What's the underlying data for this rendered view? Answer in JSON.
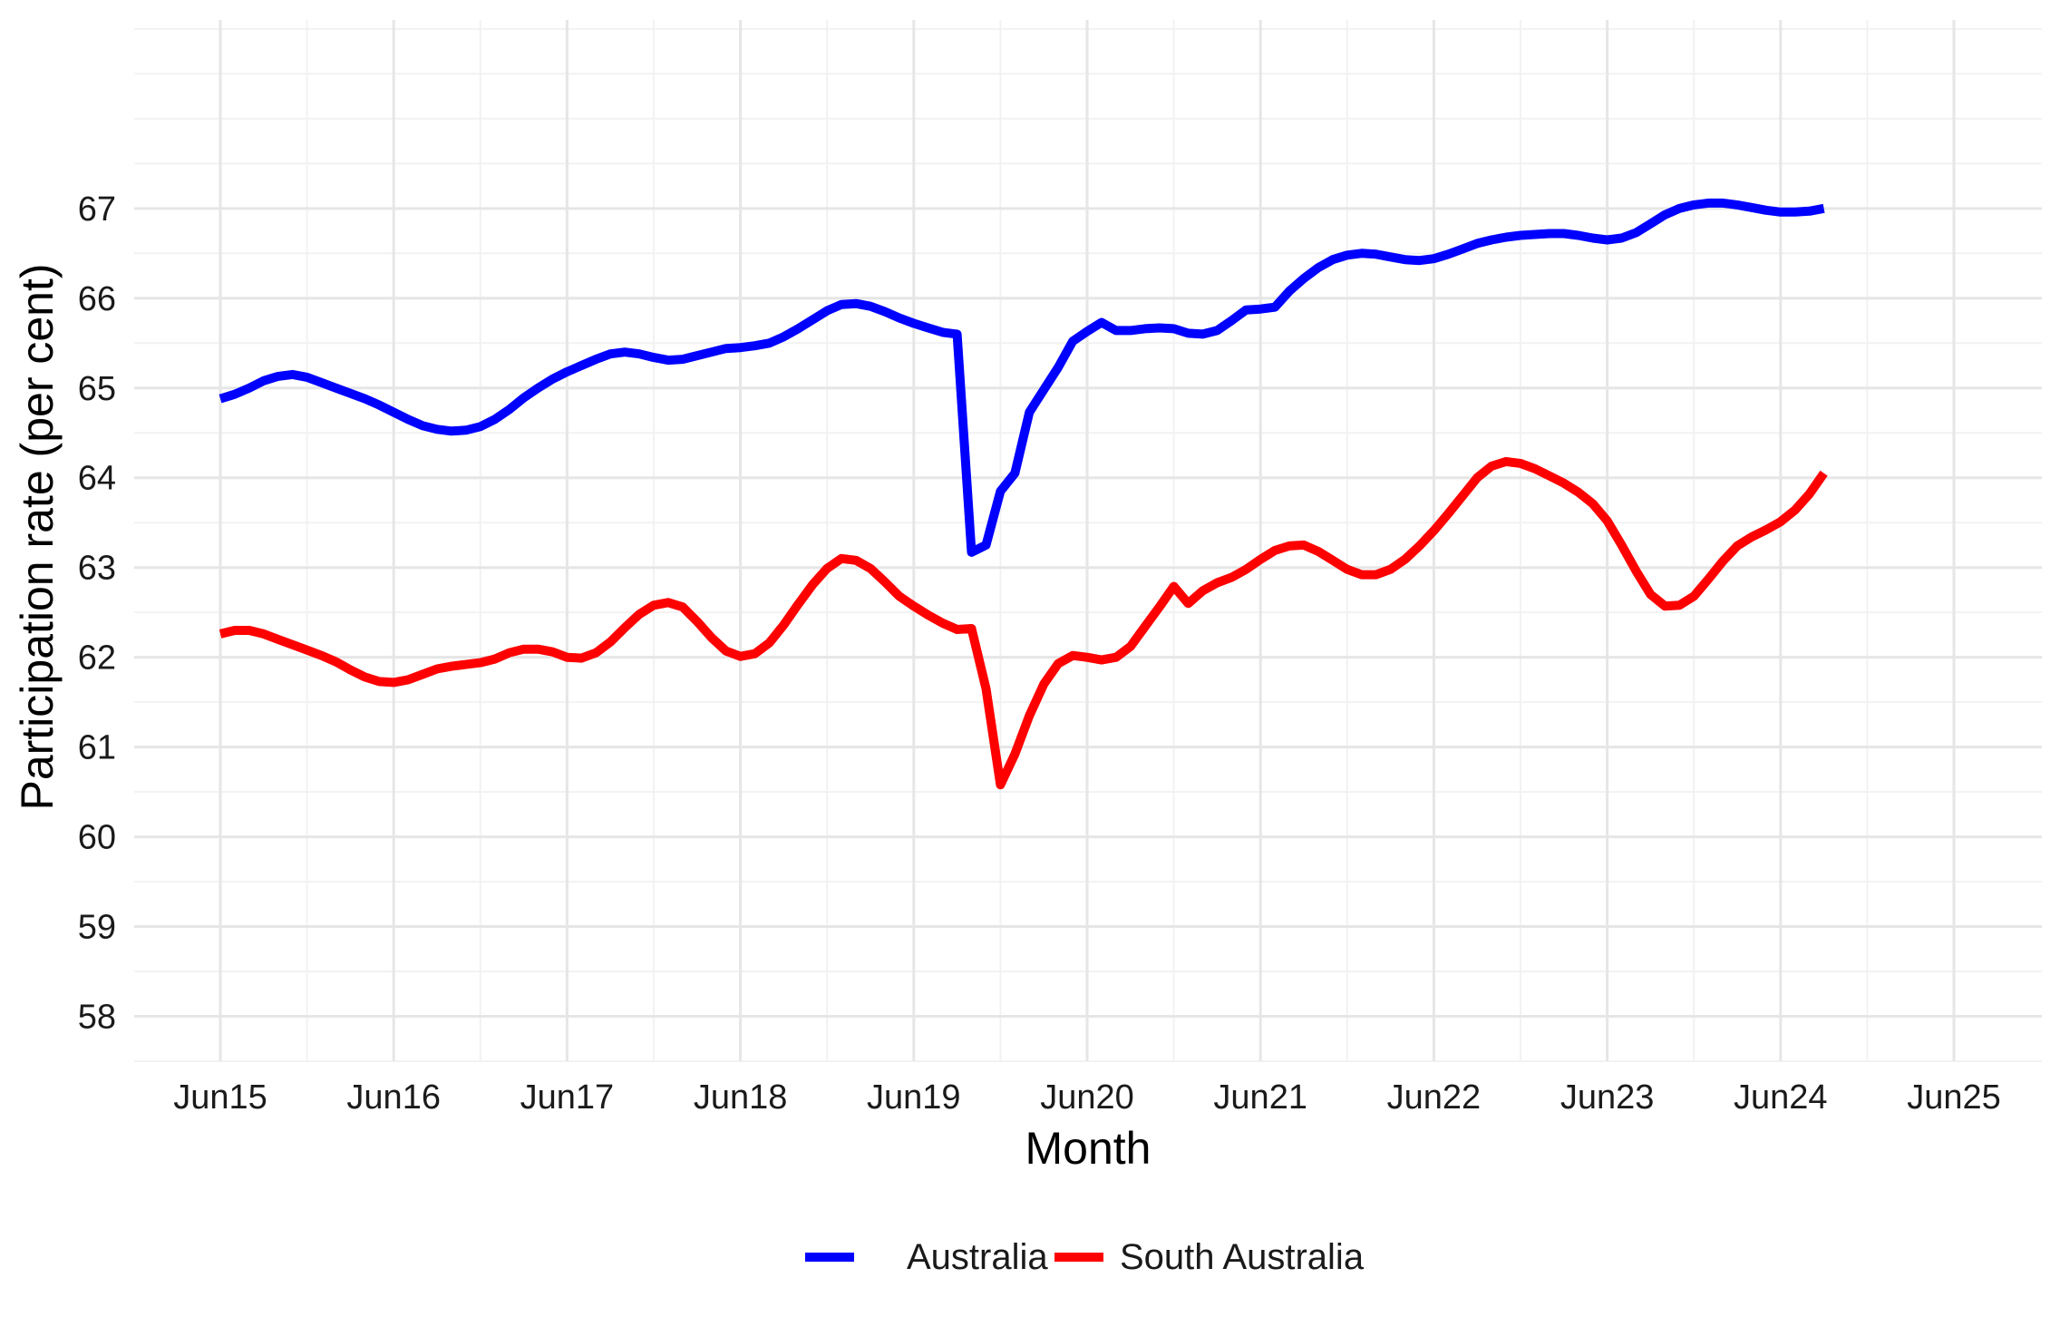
{
  "chart_data": {
    "type": "line",
    "title": "",
    "xlabel": "Month",
    "ylabel": "Participation rate (per cent)",
    "x_ticks": [
      "Jun15",
      "Jun16",
      "Jun17",
      "Jun18",
      "Jun19",
      "Jun20",
      "Jun21",
      "Jun22",
      "Jun23",
      "Jun24",
      "Jun25"
    ],
    "y_ticks": [
      58,
      59,
      60,
      61,
      62,
      63,
      64,
      65,
      66,
      67
    ],
    "xlim": [
      "2015-06",
      "2025-06"
    ],
    "ylim": [
      57.5,
      69.1
    ],
    "grid": true,
    "legend_position": "bottom",
    "series": [
      {
        "name": "Australia",
        "color": "#0000ff",
        "points": [
          [
            "2015-06",
            64.88
          ],
          [
            "2015-07",
            64.93
          ],
          [
            "2015-08",
            65.0
          ],
          [
            "2015-09",
            65.08
          ],
          [
            "2015-10",
            65.13
          ],
          [
            "2015-11",
            65.15
          ],
          [
            "2015-12",
            65.12
          ],
          [
            "2016-01",
            65.06
          ],
          [
            "2016-02",
            65.0
          ],
          [
            "2016-03",
            64.94
          ],
          [
            "2016-04",
            64.88
          ],
          [
            "2016-05",
            64.81
          ],
          [
            "2016-06",
            64.73
          ],
          [
            "2016-07",
            64.65
          ],
          [
            "2016-08",
            64.58
          ],
          [
            "2016-09",
            64.54
          ],
          [
            "2016-10",
            64.52
          ],
          [
            "2016-11",
            64.53
          ],
          [
            "2016-12",
            64.57
          ],
          [
            "2017-01",
            64.65
          ],
          [
            "2017-02",
            64.76
          ],
          [
            "2017-03",
            64.89
          ],
          [
            "2017-04",
            65.0
          ],
          [
            "2017-05",
            65.1
          ],
          [
            "2017-06",
            65.18
          ],
          [
            "2017-07",
            65.25
          ],
          [
            "2017-08",
            65.32
          ],
          [
            "2017-09",
            65.38
          ],
          [
            "2017-10",
            65.4
          ],
          [
            "2017-11",
            65.38
          ],
          [
            "2017-12",
            65.34
          ],
          [
            "2018-01",
            65.31
          ],
          [
            "2018-02",
            65.32
          ],
          [
            "2018-03",
            65.36
          ],
          [
            "2018-04",
            65.4
          ],
          [
            "2018-05",
            65.44
          ],
          [
            "2018-06",
            65.45
          ],
          [
            "2018-07",
            65.47
          ],
          [
            "2018-08",
            65.5
          ],
          [
            "2018-09",
            65.57
          ],
          [
            "2018-10",
            65.66
          ],
          [
            "2018-11",
            65.76
          ],
          [
            "2018-12",
            65.86
          ],
          [
            "2019-01",
            65.93
          ],
          [
            "2019-02",
            65.94
          ],
          [
            "2019-03",
            65.91
          ],
          [
            "2019-04",
            65.85
          ],
          [
            "2019-05",
            65.78
          ],
          [
            "2019-06",
            65.72
          ],
          [
            "2019-07",
            65.67
          ],
          [
            "2019-08",
            65.62
          ],
          [
            "2019-09",
            65.6
          ],
          [
            "2019-10",
            63.17
          ],
          [
            "2019-11",
            63.25
          ],
          [
            "2019-12",
            63.85
          ],
          [
            "2020-01",
            64.05
          ],
          [
            "2020-02",
            64.73
          ],
          [
            "2020-03",
            64.98
          ],
          [
            "2020-04",
            65.23
          ],
          [
            "2020-05",
            65.52
          ],
          [
            "2020-06",
            65.63
          ],
          [
            "2020-07",
            65.73
          ],
          [
            "2020-08",
            65.64
          ],
          [
            "2020-09",
            65.64
          ],
          [
            "2020-10",
            65.66
          ],
          [
            "2020-11",
            65.67
          ],
          [
            "2020-12",
            65.66
          ],
          [
            "2021-01",
            65.61
          ],
          [
            "2021-02",
            65.6
          ],
          [
            "2021-03",
            65.64
          ],
          [
            "2021-04",
            65.75
          ],
          [
            "2021-05",
            65.87
          ],
          [
            "2021-06",
            65.88
          ],
          [
            "2021-07",
            65.9
          ],
          [
            "2021-08",
            66.08
          ],
          [
            "2021-09",
            66.22
          ],
          [
            "2021-10",
            66.34
          ],
          [
            "2021-11",
            66.43
          ],
          [
            "2021-12",
            66.48
          ],
          [
            "2022-01",
            66.5
          ],
          [
            "2022-02",
            66.49
          ],
          [
            "2022-03",
            66.46
          ],
          [
            "2022-04",
            66.43
          ],
          [
            "2022-05",
            66.42
          ],
          [
            "2022-06",
            66.44
          ],
          [
            "2022-07",
            66.49
          ],
          [
            "2022-08",
            66.55
          ],
          [
            "2022-09",
            66.61
          ],
          [
            "2022-10",
            66.65
          ],
          [
            "2022-11",
            66.68
          ],
          [
            "2022-12",
            66.7
          ],
          [
            "2023-01",
            66.71
          ],
          [
            "2023-02",
            66.72
          ],
          [
            "2023-03",
            66.72
          ],
          [
            "2023-04",
            66.7
          ],
          [
            "2023-05",
            66.67
          ],
          [
            "2023-06",
            66.65
          ],
          [
            "2023-07",
            66.67
          ],
          [
            "2023-08",
            66.73
          ],
          [
            "2023-09",
            66.83
          ],
          [
            "2023-10",
            66.93
          ],
          [
            "2023-11",
            67.0
          ],
          [
            "2023-12",
            67.04
          ],
          [
            "2024-01",
            67.06
          ],
          [
            "2024-02",
            67.06
          ],
          [
            "2024-03",
            67.04
          ],
          [
            "2024-04",
            67.01
          ],
          [
            "2024-05",
            66.98
          ],
          [
            "2024-06",
            66.96
          ],
          [
            "2024-07",
            66.96
          ],
          [
            "2024-08",
            66.97
          ],
          [
            "2024-09",
            67.0
          ]
        ]
      },
      {
        "name": "South Australia",
        "color": "#ff0000",
        "points": [
          [
            "2015-06",
            62.26
          ],
          [
            "2015-07",
            62.3
          ],
          [
            "2015-08",
            62.3
          ],
          [
            "2015-09",
            62.26
          ],
          [
            "2015-10",
            62.2
          ],
          [
            "2015-11",
            62.14
          ],
          [
            "2015-12",
            62.08
          ],
          [
            "2016-01",
            62.02
          ],
          [
            "2016-02",
            61.95
          ],
          [
            "2016-03",
            61.86
          ],
          [
            "2016-04",
            61.78
          ],
          [
            "2016-05",
            61.73
          ],
          [
            "2016-06",
            61.72
          ],
          [
            "2016-07",
            61.75
          ],
          [
            "2016-08",
            61.81
          ],
          [
            "2016-09",
            61.87
          ],
          [
            "2016-10",
            61.9
          ],
          [
            "2016-11",
            61.92
          ],
          [
            "2016-12",
            61.94
          ],
          [
            "2017-01",
            61.98
          ],
          [
            "2017-02",
            62.05
          ],
          [
            "2017-03",
            62.09
          ],
          [
            "2017-04",
            62.09
          ],
          [
            "2017-05",
            62.06
          ],
          [
            "2017-06",
            62.0
          ],
          [
            "2017-07",
            61.99
          ],
          [
            "2017-08",
            62.05
          ],
          [
            "2017-09",
            62.17
          ],
          [
            "2017-10",
            62.33
          ],
          [
            "2017-11",
            62.48
          ],
          [
            "2017-12",
            62.58
          ],
          [
            "2018-01",
            62.61
          ],
          [
            "2018-02",
            62.56
          ],
          [
            "2018-03",
            62.4
          ],
          [
            "2018-04",
            62.22
          ],
          [
            "2018-05",
            62.07
          ],
          [
            "2018-06",
            62.01
          ],
          [
            "2018-07",
            62.04
          ],
          [
            "2018-08",
            62.16
          ],
          [
            "2018-09",
            62.36
          ],
          [
            "2018-10",
            62.59
          ],
          [
            "2018-11",
            62.81
          ],
          [
            "2018-12",
            62.99
          ],
          [
            "2019-01",
            63.1
          ],
          [
            "2019-02",
            63.08
          ],
          [
            "2019-03",
            62.99
          ],
          [
            "2019-04",
            62.84
          ],
          [
            "2019-05",
            62.68
          ],
          [
            "2019-06",
            62.57
          ],
          [
            "2019-07",
            62.47
          ],
          [
            "2019-08",
            62.38
          ],
          [
            "2019-09",
            62.31
          ],
          [
            "2019-10",
            62.32
          ],
          [
            "2019-11",
            61.65
          ],
          [
            "2019-12",
            60.58
          ],
          [
            "2020-01",
            60.92
          ],
          [
            "2020-02",
            61.35
          ],
          [
            "2020-03",
            61.7
          ],
          [
            "2020-04",
            61.93
          ],
          [
            "2020-05",
            62.02
          ],
          [
            "2020-06",
            62.0
          ],
          [
            "2020-07",
            61.97
          ],
          [
            "2020-08",
            62.0
          ],
          [
            "2020-09",
            62.12
          ],
          [
            "2020-10",
            62.34
          ],
          [
            "2020-11",
            62.56
          ],
          [
            "2020-12",
            62.79
          ],
          [
            "2021-01",
            62.6
          ],
          [
            "2021-02",
            62.74
          ],
          [
            "2021-03",
            62.83
          ],
          [
            "2021-04",
            62.89
          ],
          [
            "2021-05",
            62.98
          ],
          [
            "2021-06",
            63.09
          ],
          [
            "2021-07",
            63.19
          ],
          [
            "2021-08",
            63.24
          ],
          [
            "2021-09",
            63.25
          ],
          [
            "2021-10",
            63.18
          ],
          [
            "2021-11",
            63.08
          ],
          [
            "2021-12",
            62.98
          ],
          [
            "2022-01",
            62.92
          ],
          [
            "2022-02",
            62.92
          ],
          [
            "2022-03",
            62.98
          ],
          [
            "2022-04",
            63.09
          ],
          [
            "2022-05",
            63.24
          ],
          [
            "2022-06",
            63.41
          ],
          [
            "2022-07",
            63.6
          ],
          [
            "2022-08",
            63.8
          ],
          [
            "2022-09",
            64.0
          ],
          [
            "2022-10",
            64.13
          ],
          [
            "2022-11",
            64.18
          ],
          [
            "2022-12",
            64.16
          ],
          [
            "2023-01",
            64.1
          ],
          [
            "2023-02",
            64.02
          ],
          [
            "2023-03",
            63.94
          ],
          [
            "2023-04",
            63.84
          ],
          [
            "2023-05",
            63.71
          ],
          [
            "2023-06",
            63.52
          ],
          [
            "2023-07",
            63.25
          ],
          [
            "2023-08",
            62.96
          ],
          [
            "2023-09",
            62.7
          ],
          [
            "2023-10",
            62.57
          ],
          [
            "2023-11",
            62.58
          ],
          [
            "2023-12",
            62.68
          ],
          [
            "2024-01",
            62.87
          ],
          [
            "2024-02",
            63.07
          ],
          [
            "2024-03",
            63.24
          ],
          [
            "2024-04",
            63.34
          ],
          [
            "2024-05",
            63.42
          ],
          [
            "2024-06",
            63.51
          ],
          [
            "2024-07",
            63.64
          ],
          [
            "2024-08",
            63.82
          ],
          [
            "2024-09",
            64.05
          ]
        ]
      }
    ]
  }
}
